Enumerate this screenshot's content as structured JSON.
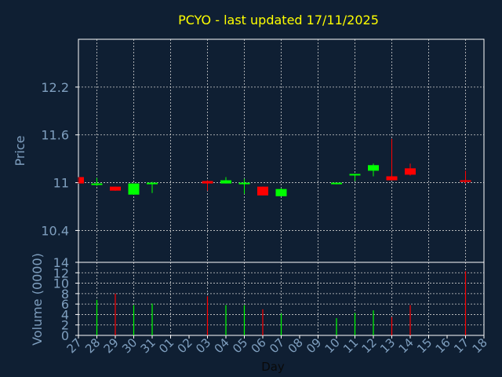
{
  "chart_data": {
    "type": "candlestick",
    "title": "PCYO - last updated 17/11/2025",
    "xlabel": "Day",
    "ylabel": "Price",
    "volume_label": "Volume (0000)",
    "ylim": [
      10.0,
      12.8
    ],
    "yticks": [
      "10.4",
      "11",
      "11.6",
      "12.2"
    ],
    "ytick_values": [
      10.4,
      11.0,
      11.6,
      12.2
    ],
    "vol_ylim": [
      0,
      14
    ],
    "vol_ticks": [
      "0",
      "2",
      "4",
      "6",
      "8",
      "10",
      "12",
      "14"
    ],
    "vol_tick_values": [
      0,
      2,
      4,
      6,
      8,
      10,
      12,
      14
    ],
    "x_tick_labels": [
      "27",
      "28",
      "29",
      "30",
      "31",
      "01",
      "02",
      "03",
      "04",
      "05",
      "06",
      "07",
      "08",
      "09",
      "10",
      "11",
      "12",
      "13",
      "14",
      "15",
      "16",
      "17",
      "18"
    ],
    "grid": true,
    "colors": {
      "background": "#0f1f33",
      "axis": "#ffffff",
      "grid": "#d0d0d0",
      "title": "#ffff00",
      "label": "#7f9fbf",
      "up": "#00ff00",
      "down": "#ff0000"
    },
    "candles": [
      {
        "day": "27",
        "open": 11.07,
        "high": 11.07,
        "low": 10.99,
        "close": 10.99
      },
      {
        "day": "28",
        "open": 10.98,
        "high": 11.06,
        "low": 10.96,
        "close": 10.99
      },
      {
        "day": "29",
        "open": 10.95,
        "high": 10.95,
        "low": 10.9,
        "close": 10.9
      },
      {
        "day": "30",
        "open": 10.85,
        "high": 10.99,
        "low": 10.85,
        "close": 10.99
      },
      {
        "day": "31",
        "open": 10.99,
        "high": 11.01,
        "low": 10.87,
        "close": 11.0
      },
      {
        "day": "03",
        "open": 11.02,
        "high": 11.03,
        "low": 10.9,
        "close": 10.99
      },
      {
        "day": "04",
        "open": 10.99,
        "high": 11.07,
        "low": 10.99,
        "close": 11.03
      },
      {
        "day": "05",
        "open": 10.99,
        "high": 11.05,
        "low": 10.86,
        "close": 11.0
      },
      {
        "day": "06",
        "open": 10.95,
        "high": 10.95,
        "low": 10.84,
        "close": 10.84
      },
      {
        "day": "07",
        "open": 10.83,
        "high": 10.93,
        "low": 10.83,
        "close": 10.92
      },
      {
        "day": "10",
        "open": 10.99,
        "high": 11.0,
        "low": 10.98,
        "close": 11.0
      },
      {
        "day": "11",
        "open": 11.09,
        "high": 11.11,
        "low": 11.02,
        "close": 11.11
      },
      {
        "day": "12",
        "open": 11.15,
        "high": 11.24,
        "low": 11.08,
        "close": 11.22
      },
      {
        "day": "13",
        "open": 11.08,
        "high": 11.55,
        "low": 11.03,
        "close": 11.03
      },
      {
        "day": "14",
        "open": 11.18,
        "high": 11.24,
        "low": 11.09,
        "close": 11.1
      },
      {
        "day": "17",
        "open": 11.03,
        "high": 11.15,
        "low": 10.99,
        "close": 11.01
      }
    ],
    "volume": [
      {
        "day": "28",
        "value": 6.8,
        "color": "up"
      },
      {
        "day": "29",
        "value": 8.0,
        "color": "down"
      },
      {
        "day": "30",
        "value": 5.8,
        "color": "up"
      },
      {
        "day": "31",
        "value": 6.1,
        "color": "up"
      },
      {
        "day": "03",
        "value": 7.5,
        "color": "down"
      },
      {
        "day": "04",
        "value": 5.8,
        "color": "up"
      },
      {
        "day": "05",
        "value": 5.8,
        "color": "up"
      },
      {
        "day": "06",
        "value": 5.0,
        "color": "down"
      },
      {
        "day": "07",
        "value": 4.2,
        "color": "up"
      },
      {
        "day": "10",
        "value": 3.3,
        "color": "up"
      },
      {
        "day": "11",
        "value": 4.3,
        "color": "up"
      },
      {
        "day": "12",
        "value": 4.8,
        "color": "up"
      },
      {
        "day": "13",
        "value": 3.5,
        "color": "down"
      },
      {
        "day": "14",
        "value": 5.8,
        "color": "down"
      },
      {
        "day": "17",
        "value": 12.3,
        "color": "down"
      }
    ]
  }
}
